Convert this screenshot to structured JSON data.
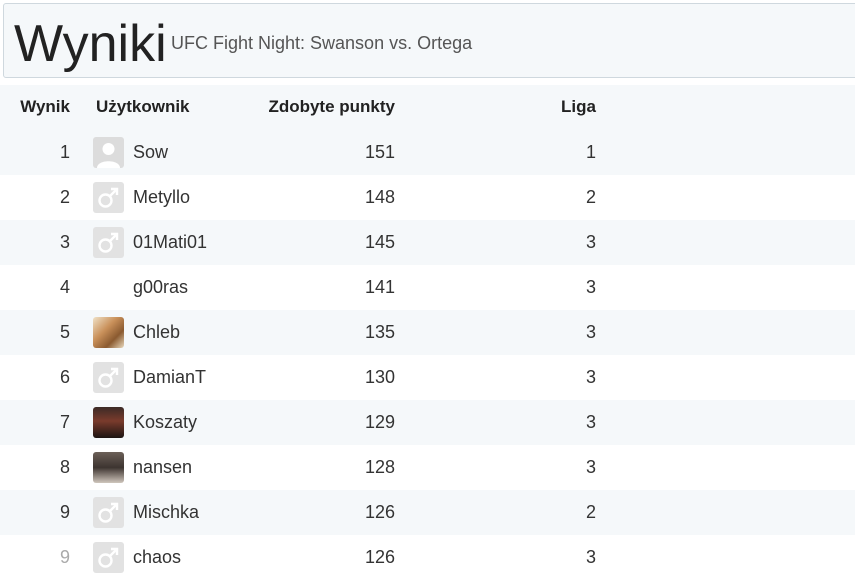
{
  "header": {
    "title": "Wyniki",
    "subtitle": "UFC Fight Night: Swanson vs. Ortega"
  },
  "table": {
    "columns": {
      "rank": "Wynik",
      "user": "Użytkownik",
      "points": "Zdobyte punkty",
      "league": "Liga"
    },
    "rows": [
      {
        "rank": "1",
        "user": "Sow",
        "points": "151",
        "league": "1",
        "avatar": "default-user-icon"
      },
      {
        "rank": "2",
        "user": "Metyllo",
        "points": "148",
        "league": "2",
        "avatar": "male-symbol-icon"
      },
      {
        "rank": "3",
        "user": "01Mati01",
        "points": "145",
        "league": "3",
        "avatar": "male-symbol-icon"
      },
      {
        "rank": "4",
        "user": "g00ras",
        "points": "141",
        "league": "3",
        "avatar": "none"
      },
      {
        "rank": "5",
        "user": "Chleb",
        "points": "135",
        "league": "3",
        "avatar": "bread-photo"
      },
      {
        "rank": "6",
        "user": "DamianT",
        "points": "130",
        "league": "3",
        "avatar": "male-symbol-icon"
      },
      {
        "rank": "7",
        "user": "Koszaty",
        "points": "129",
        "league": "3",
        "avatar": "fighter-photo"
      },
      {
        "rank": "8",
        "user": "nansen",
        "points": "128",
        "league": "3",
        "avatar": "woman-photo"
      },
      {
        "rank": "9",
        "user": "Mischka",
        "points": "126",
        "league": "2",
        "avatar": "male-symbol-icon"
      },
      {
        "rank": "9",
        "user": "chaos",
        "points": "126",
        "league": "3",
        "avatar": "male-symbol-icon",
        "rank_muted": true
      }
    ]
  },
  "colors": {
    "row_stripe": "#f5f8fa",
    "header_bg": "#f5f8fa",
    "muted_rank": "#aaaaaa"
  }
}
